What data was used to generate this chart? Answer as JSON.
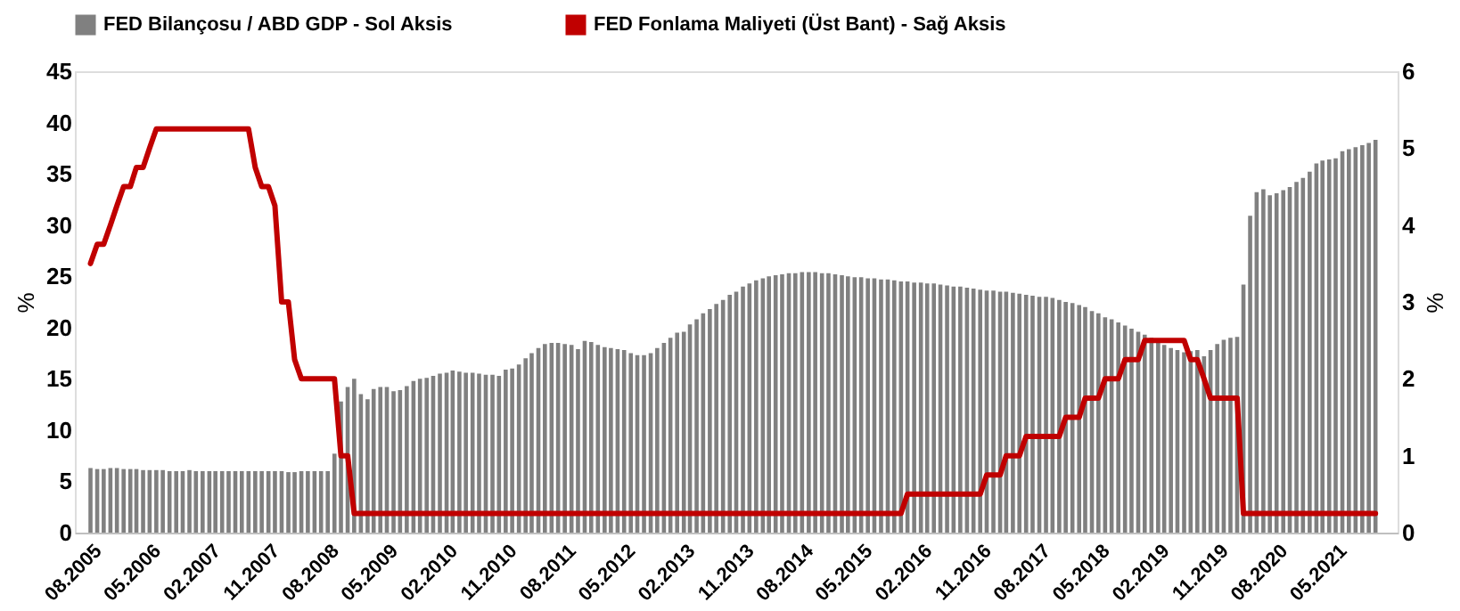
{
  "chart_data": {
    "type": "bar",
    "ylabel": "%",
    "y2label": "%",
    "x": [
      "2005-08",
      "2005-09",
      "2005-10",
      "2005-11",
      "2005-12",
      "2006-01",
      "2006-02",
      "2006-03",
      "2006-04",
      "2006-05",
      "2006-06",
      "2006-07",
      "2006-08",
      "2006-09",
      "2006-10",
      "2006-11",
      "2006-12",
      "2007-01",
      "2007-02",
      "2007-03",
      "2007-04",
      "2007-05",
      "2007-06",
      "2007-07",
      "2007-08",
      "2007-09",
      "2007-10",
      "2007-11",
      "2007-12",
      "2008-01",
      "2008-02",
      "2008-03",
      "2008-04",
      "2008-05",
      "2008-06",
      "2008-07",
      "2008-08",
      "2008-09",
      "2008-10",
      "2008-11",
      "2008-12",
      "2009-01",
      "2009-02",
      "2009-03",
      "2009-04",
      "2009-05",
      "2009-06",
      "2009-07",
      "2009-08",
      "2009-09",
      "2009-10",
      "2009-11",
      "2009-12",
      "2010-01",
      "2010-02",
      "2010-03",
      "2010-04",
      "2010-05",
      "2010-06",
      "2010-07",
      "2010-08",
      "2010-09",
      "2010-10",
      "2010-11",
      "2010-12",
      "2011-01",
      "2011-02",
      "2011-03",
      "2011-04",
      "2011-05",
      "2011-06",
      "2011-07",
      "2011-08",
      "2011-09",
      "2011-10",
      "2011-11",
      "2011-12",
      "2012-01",
      "2012-02",
      "2012-03",
      "2012-04",
      "2012-05",
      "2012-06",
      "2012-07",
      "2012-08",
      "2012-09",
      "2012-10",
      "2012-11",
      "2012-12",
      "2013-01",
      "2013-02",
      "2013-03",
      "2013-04",
      "2013-05",
      "2013-06",
      "2013-07",
      "2013-08",
      "2013-09",
      "2013-10",
      "2013-11",
      "2013-12",
      "2014-01",
      "2014-02",
      "2014-03",
      "2014-04",
      "2014-05",
      "2014-06",
      "2014-07",
      "2014-08",
      "2014-09",
      "2014-10",
      "2014-11",
      "2014-12",
      "2015-01",
      "2015-02",
      "2015-03",
      "2015-04",
      "2015-05",
      "2015-06",
      "2015-07",
      "2015-08",
      "2015-09",
      "2015-10",
      "2015-11",
      "2015-12",
      "2016-01",
      "2016-02",
      "2016-03",
      "2016-04",
      "2016-05",
      "2016-06",
      "2016-07",
      "2016-08",
      "2016-09",
      "2016-10",
      "2016-11",
      "2016-12",
      "2017-01",
      "2017-02",
      "2017-03",
      "2017-04",
      "2017-05",
      "2017-06",
      "2017-07",
      "2017-08",
      "2017-09",
      "2017-10",
      "2017-11",
      "2017-12",
      "2018-01",
      "2018-02",
      "2018-03",
      "2018-04",
      "2018-05",
      "2018-06",
      "2018-07",
      "2018-08",
      "2018-09",
      "2018-10",
      "2018-11",
      "2018-12",
      "2019-01",
      "2019-02",
      "2019-03",
      "2019-04",
      "2019-05",
      "2019-06",
      "2019-07",
      "2019-08",
      "2019-09",
      "2019-10",
      "2019-11",
      "2019-12",
      "2020-01",
      "2020-02",
      "2020-03",
      "2020-04",
      "2020-05",
      "2020-06",
      "2020-07",
      "2020-08",
      "2020-09",
      "2020-10",
      "2020-11",
      "2020-12",
      "2021-01",
      "2021-02",
      "2021-03",
      "2021-04",
      "2021-05",
      "2021-06",
      "2021-07",
      "2021-08",
      "2021-09",
      "2021-10",
      "2021-11"
    ],
    "xlim": [
      "2005-07",
      "2022-01"
    ],
    "xticks": [
      {
        "value": "2005-08",
        "label": "08.2005"
      },
      {
        "value": "2006-05",
        "label": "05.2006"
      },
      {
        "value": "2007-02",
        "label": "02.2007"
      },
      {
        "value": "2007-11",
        "label": "11.2007"
      },
      {
        "value": "2008-08",
        "label": "08.2008"
      },
      {
        "value": "2009-05",
        "label": "05.2009"
      },
      {
        "value": "2010-02",
        "label": "02.2010"
      },
      {
        "value": "2010-11",
        "label": "11.2010"
      },
      {
        "value": "2011-08",
        "label": "08.2011"
      },
      {
        "value": "2012-05",
        "label": "05.2012"
      },
      {
        "value": "2013-02",
        "label": "02.2013"
      },
      {
        "value": "2013-11",
        "label": "11.2013"
      },
      {
        "value": "2014-08",
        "label": "08.2014"
      },
      {
        "value": "2015-05",
        "label": "05.2015"
      },
      {
        "value": "2016-02",
        "label": "02.2016"
      },
      {
        "value": "2016-11",
        "label": "11.2016"
      },
      {
        "value": "2017-08",
        "label": "08.2017"
      },
      {
        "value": "2018-05",
        "label": "05.2018"
      },
      {
        "value": "2019-02",
        "label": "02.2019"
      },
      {
        "value": "2019-11",
        "label": "11.2019"
      },
      {
        "value": "2020-08",
        "label": "08.2020"
      },
      {
        "value": "2021-05",
        "label": "05.2021"
      }
    ],
    "series": [
      {
        "name": "FED Bilançosu / ABD GDP - Sol Aksis",
        "color": "#808080",
        "values": [
          6.3,
          6.2,
          6.2,
          6.3,
          6.3,
          6.2,
          6.2,
          6.2,
          6.1,
          6.1,
          6.1,
          6.1,
          6.0,
          6.0,
          6.0,
          6.1,
          6.0,
          6.0,
          6.0,
          6.0,
          6.0,
          6.0,
          6.0,
          6.0,
          6.0,
          6.0,
          6.0,
          6.0,
          6.0,
          6.0,
          5.9,
          5.9,
          6.0,
          6.0,
          6.0,
          6.0,
          6.0,
          7.7,
          12.8,
          14.2,
          15.0,
          13.5,
          13.0,
          14.0,
          14.2,
          14.2,
          13.8,
          13.9,
          14.3,
          14.8,
          15.0,
          15.1,
          15.3,
          15.5,
          15.6,
          15.8,
          15.7,
          15.6,
          15.6,
          15.5,
          15.4,
          15.4,
          15.3,
          15.9,
          16.0,
          16.4,
          17.0,
          17.5,
          18.0,
          18.4,
          18.5,
          18.5,
          18.4,
          18.3,
          17.9,
          18.7,
          18.6,
          18.3,
          18.1,
          18.0,
          17.9,
          17.8,
          17.5,
          17.3,
          17.3,
          17.5,
          18.0,
          18.5,
          19.0,
          19.5,
          19.6,
          20.3,
          20.8,
          21.4,
          21.8,
          22.3,
          22.7,
          23.2,
          23.5,
          24.0,
          24.3,
          24.6,
          24.8,
          25.0,
          25.1,
          25.2,
          25.3,
          25.3,
          25.4,
          25.4,
          25.4,
          25.3,
          25.3,
          25.2,
          25.1,
          25.0,
          24.9,
          24.9,
          24.8,
          24.8,
          24.7,
          24.7,
          24.6,
          24.5,
          24.5,
          24.4,
          24.4,
          24.3,
          24.3,
          24.2,
          24.1,
          24.0,
          24.0,
          23.9,
          23.8,
          23.7,
          23.6,
          23.6,
          23.5,
          23.5,
          23.4,
          23.3,
          23.2,
          23.1,
          23.0,
          23.0,
          22.9,
          22.7,
          22.5,
          22.4,
          22.2,
          22.0,
          21.6,
          21.4,
          21.0,
          20.8,
          20.5,
          20.2,
          19.9,
          19.6,
          19.3,
          19.0,
          18.6,
          18.3,
          18.0,
          17.8,
          17.6,
          17.7,
          17.8,
          17.2,
          17.8,
          18.4,
          18.8,
          19.0,
          19.1,
          24.2,
          30.9,
          33.2,
          33.5,
          32.9,
          33.1,
          33.4,
          33.7,
          34.2,
          34.6,
          35.2,
          36.0,
          36.3,
          36.4,
          36.5,
          37.2,
          37.4,
          37.6,
          37.8,
          38.0,
          38.3
        ]
      },
      {
        "name": "FED Fonlama Maliyeti (Üst Bant) - Sağ Aksis",
        "type": "line",
        "axis": "y2",
        "color": "#c00000",
        "values": [
          3.5,
          3.75,
          3.75,
          4.0,
          4.25,
          4.5,
          4.5,
          4.75,
          4.75,
          5.0,
          5.25,
          5.25,
          5.25,
          5.25,
          5.25,
          5.25,
          5.25,
          5.25,
          5.25,
          5.25,
          5.25,
          5.25,
          5.25,
          5.25,
          5.25,
          4.75,
          4.5,
          4.5,
          4.25,
          3.0,
          3.0,
          2.25,
          2.0,
          2.0,
          2.0,
          2.0,
          2.0,
          2.0,
          1.0,
          1.0,
          0.25,
          0.25,
          0.25,
          0.25,
          0.25,
          0.25,
          0.25,
          0.25,
          0.25,
          0.25,
          0.25,
          0.25,
          0.25,
          0.25,
          0.25,
          0.25,
          0.25,
          0.25,
          0.25,
          0.25,
          0.25,
          0.25,
          0.25,
          0.25,
          0.25,
          0.25,
          0.25,
          0.25,
          0.25,
          0.25,
          0.25,
          0.25,
          0.25,
          0.25,
          0.25,
          0.25,
          0.25,
          0.25,
          0.25,
          0.25,
          0.25,
          0.25,
          0.25,
          0.25,
          0.25,
          0.25,
          0.25,
          0.25,
          0.25,
          0.25,
          0.25,
          0.25,
          0.25,
          0.25,
          0.25,
          0.25,
          0.25,
          0.25,
          0.25,
          0.25,
          0.25,
          0.25,
          0.25,
          0.25,
          0.25,
          0.25,
          0.25,
          0.25,
          0.25,
          0.25,
          0.25,
          0.25,
          0.25,
          0.25,
          0.25,
          0.25,
          0.25,
          0.25,
          0.25,
          0.25,
          0.25,
          0.25,
          0.25,
          0.25,
          0.5,
          0.5,
          0.5,
          0.5,
          0.5,
          0.5,
          0.5,
          0.5,
          0.5,
          0.5,
          0.5,
          0.5,
          0.75,
          0.75,
          0.75,
          1.0,
          1.0,
          1.0,
          1.25,
          1.25,
          1.25,
          1.25,
          1.25,
          1.25,
          1.5,
          1.5,
          1.5,
          1.75,
          1.75,
          1.75,
          2.0,
          2.0,
          2.0,
          2.25,
          2.25,
          2.25,
          2.5,
          2.5,
          2.5,
          2.5,
          2.5,
          2.5,
          2.5,
          2.25,
          2.25,
          2.0,
          1.75,
          1.75,
          1.75,
          1.75,
          1.75,
          0.25,
          0.25,
          0.25,
          0.25,
          0.25,
          0.25,
          0.25,
          0.25,
          0.25,
          0.25,
          0.25,
          0.25,
          0.25,
          0.25,
          0.25,
          0.25,
          0.25,
          0.25,
          0.25,
          0.25,
          0.25
        ]
      }
    ],
    "ylim": [
      0,
      45
    ],
    "yticks": [
      0,
      5,
      10,
      15,
      20,
      25,
      30,
      35,
      40,
      45
    ],
    "y2lim": [
      0,
      6
    ],
    "y2ticks": [
      0,
      1,
      2,
      3,
      4,
      5,
      6
    ],
    "grid": false,
    "legend": "top",
    "line_style": "solid",
    "marker": "none"
  }
}
